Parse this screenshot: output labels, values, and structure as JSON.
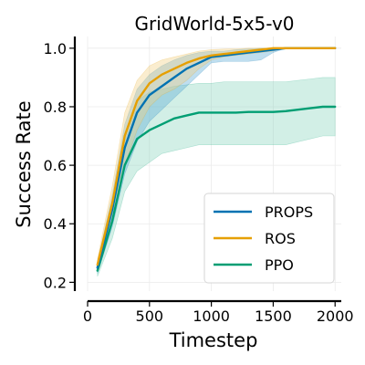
{
  "chart_data": {
    "type": "line",
    "title": "GridWorld-5x5-v0",
    "xlabel": "Timestep",
    "ylabel": "Success Rate",
    "xlim": [
      0,
      2050
    ],
    "ylim": [
      0.17,
      1.04
    ],
    "xticks": [
      0,
      500,
      1000,
      1500,
      2000
    ],
    "yticks": [
      0.2,
      0.4,
      0.6,
      0.8,
      1.0
    ],
    "xtick_labels": [
      "0",
      "500",
      "1000",
      "1500",
      "2000"
    ],
    "ytick_labels": [
      "0.2",
      "0.4",
      "0.6",
      "0.8",
      "1.0"
    ],
    "grid": true,
    "legend_position": "bottom-right",
    "x": [
      80,
      200,
      300,
      400,
      500,
      600,
      700,
      800,
      900,
      1000,
      1100,
      1200,
      1300,
      1400,
      1500,
      1600,
      1700,
      1800,
      1900,
      2000
    ],
    "series": [
      {
        "name": "PROPS",
        "color": "#0072B2",
        "fill": "#56A9D6",
        "values": [
          0.25,
          0.45,
          0.66,
          0.78,
          0.84,
          0.87,
          0.9,
          0.93,
          0.95,
          0.97,
          0.975,
          0.98,
          0.985,
          0.99,
          0.995,
          1.0,
          1.0,
          1.0,
          1.0,
          1.0
        ],
        "lower": [
          0.23,
          0.39,
          0.57,
          0.68,
          0.75,
          0.79,
          0.83,
          0.87,
          0.91,
          0.95,
          0.955,
          0.955,
          0.955,
          0.96,
          0.985,
          1.0,
          1.0,
          1.0,
          1.0,
          1.0
        ],
        "upper": [
          0.27,
          0.5,
          0.74,
          0.86,
          0.91,
          0.94,
          0.96,
          0.975,
          0.985,
          0.99,
          0.99,
          0.995,
          0.998,
          1.0,
          1.0,
          1.0,
          1.0,
          1.0,
          1.0,
          1.0
        ]
      },
      {
        "name": "ROS",
        "color": "#E69F00",
        "fill": "#F2CF80",
        "values": [
          0.26,
          0.47,
          0.7,
          0.82,
          0.88,
          0.91,
          0.93,
          0.95,
          0.965,
          0.975,
          0.98,
          0.985,
          0.99,
          0.995,
          1.0,
          1.0,
          1.0,
          1.0,
          1.0,
          1.0
        ],
        "lower": [
          0.24,
          0.41,
          0.6,
          0.72,
          0.8,
          0.84,
          0.86,
          0.89,
          0.93,
          0.96,
          0.97,
          0.975,
          0.98,
          0.985,
          0.99,
          1.0,
          1.0,
          1.0,
          1.0,
          1.0
        ],
        "upper": [
          0.28,
          0.53,
          0.78,
          0.89,
          0.94,
          0.96,
          0.97,
          0.98,
          0.99,
          0.995,
          0.997,
          0.998,
          1.0,
          1.0,
          1.0,
          1.0,
          1.0,
          1.0,
          1.0,
          1.0
        ]
      },
      {
        "name": "PPO",
        "color": "#009E73",
        "fill": "#8AD4BE",
        "values": [
          0.24,
          0.41,
          0.6,
          0.69,
          0.72,
          0.74,
          0.76,
          0.77,
          0.78,
          0.78,
          0.78,
          0.78,
          0.782,
          0.782,
          0.782,
          0.785,
          0.79,
          0.795,
          0.8,
          0.8
        ],
        "lower": [
          0.22,
          0.35,
          0.51,
          0.58,
          0.61,
          0.64,
          0.65,
          0.66,
          0.67,
          0.67,
          0.67,
          0.67,
          0.67,
          0.67,
          0.67,
          0.67,
          0.68,
          0.69,
          0.7,
          0.7
        ],
        "upper": [
          0.27,
          0.48,
          0.71,
          0.82,
          0.85,
          0.86,
          0.87,
          0.875,
          0.88,
          0.88,
          0.885,
          0.885,
          0.885,
          0.885,
          0.885,
          0.885,
          0.89,
          0.895,
          0.9,
          0.9
        ]
      }
    ]
  }
}
